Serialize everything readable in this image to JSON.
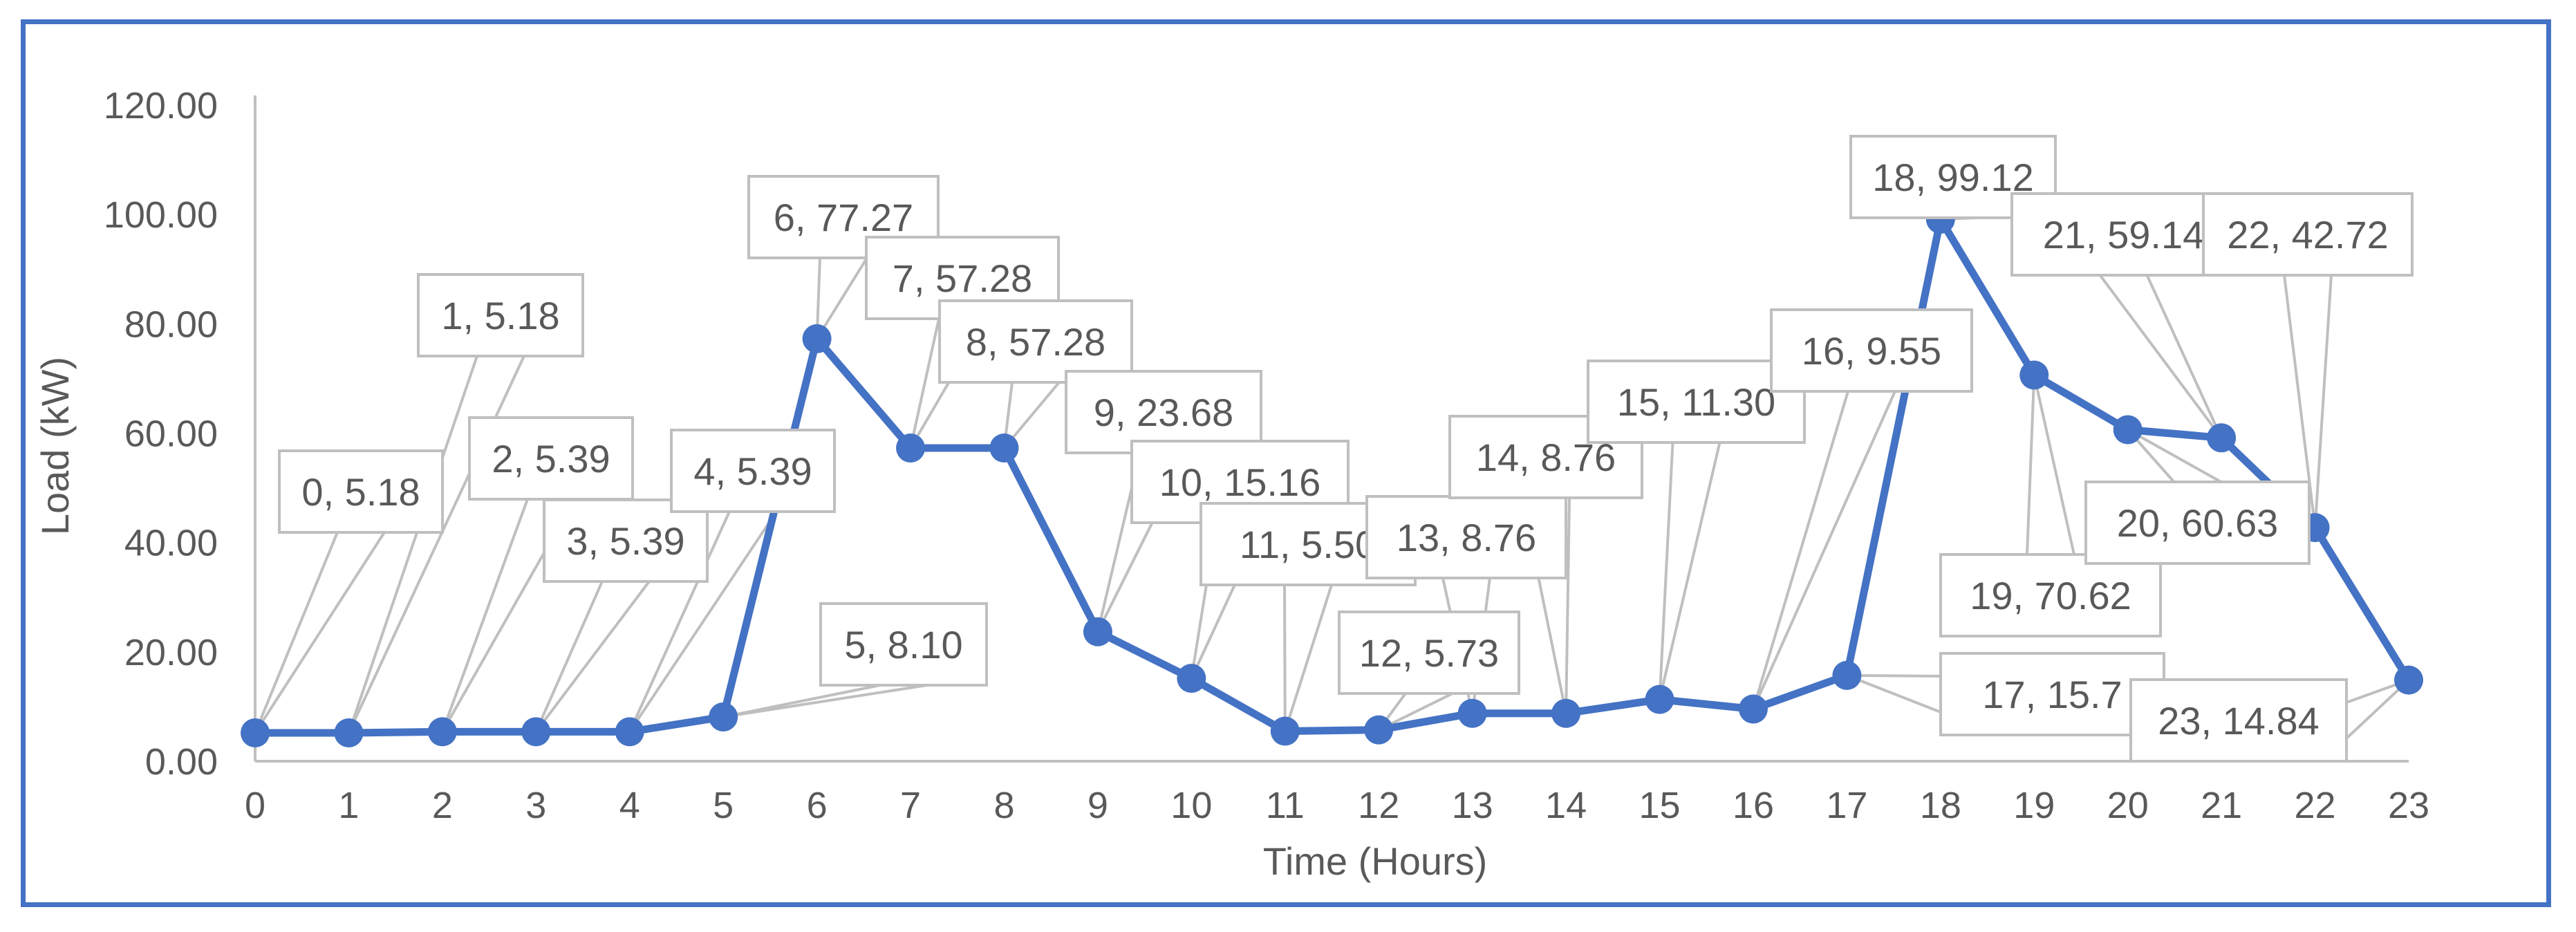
{
  "chart_data": {
    "type": "line",
    "xlabel": "Time (Hours)",
    "ylabel": "Load (kW)",
    "ylim": [
      0,
      120
    ],
    "y_ticks": [
      "0.00",
      "20.00",
      "40.00",
      "60.00",
      "80.00",
      "100.00",
      "120.00"
    ],
    "x": [
      0,
      1,
      2,
      3,
      4,
      5,
      6,
      7,
      8,
      9,
      10,
      11,
      12,
      13,
      14,
      15,
      16,
      17,
      18,
      19,
      20,
      21,
      22,
      23
    ],
    "series": [
      {
        "values": [
          5.18,
          5.18,
          5.39,
          5.39,
          5.39,
          8.1,
          77.27,
          57.28,
          57.28,
          23.68,
          15.16,
          5.5,
          5.73,
          8.76,
          8.76,
          11.3,
          9.55,
          15.7,
          99.12,
          70.62,
          60.63,
          59.14,
          42.72,
          14.84
        ],
        "color": "#4472c4"
      }
    ],
    "data_labels": [
      "0, 5.18",
      "1, 5.18",
      "2, 5.39",
      "3, 5.39",
      "4, 5.39",
      "5, 8.10",
      "6, 77.27",
      "7, 57.28",
      "8, 57.28",
      "9, 23.68",
      "10, 15.16",
      "11, 5.50",
      "12, 5.73",
      "13, 8.76",
      "14, 8.76",
      "15, 11.30",
      "16, 9.55",
      "17, 15.7",
      "18, 99.12",
      "19, 70.62",
      "20, 60.63",
      "21, 59.14",
      "22, 42.72",
      "23, 14.84"
    ],
    "grid": false,
    "legend": "none",
    "colors": {
      "frame": "#4472c4",
      "line": "#4472c4",
      "axis": "#bfbfbf",
      "callout_border": "#bfbfbf",
      "text": "#595959"
    }
  }
}
